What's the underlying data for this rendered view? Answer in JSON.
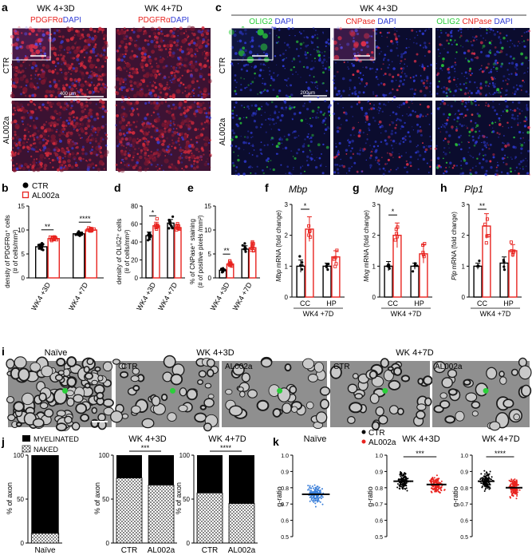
{
  "colors": {
    "ctr": "#000000",
    "al002a": "#e8231f",
    "naive": "#3b7fd9",
    "green": "#2bcf3a",
    "dapi": "#2f3bd6"
  },
  "panel_a": {
    "letter": "a",
    "col1_title": "WK 4+3D",
    "col2_title": "WK 4+7D",
    "stain_red": "PDGFRα",
    "stain_blue": "DAPI",
    "row1": "CTR",
    "row2": "AL002a",
    "scale": "400 μm"
  },
  "panel_c": {
    "letter": "c",
    "title": "WK 4+3D",
    "c1_green": "OLIG2",
    "c1_blue": "DAPI",
    "c2_red": "CNPase",
    "c2_blue": "DAPI",
    "c3_green": "OLIG2",
    "c3_red": "CNPase",
    "c3_blue": "DAPI",
    "row1": "CTR",
    "row2": "AL002a",
    "scale": "200μm"
  },
  "legend_b": {
    "ctr": "CTR",
    "al": "AL002a"
  },
  "panel_b": {
    "letter": "b",
    "ylabel1": "density of PDGFRα⁺ cells",
    "ylabel2": "(# of cells/mm²)",
    "ticks": [
      "0",
      "5",
      "10",
      "15"
    ],
    "groups": [
      "WK4 +3D",
      "WK4 +7D"
    ],
    "sig": [
      "**",
      "****"
    ]
  },
  "panel_d": {
    "letter": "d",
    "ylabel1": "density of OLIG2⁺ cells",
    "ylabel2": "(# of cells/mm²)",
    "ticks": [
      "0",
      "20",
      "40",
      "60",
      "80"
    ],
    "groups": [
      "WK4 +3D",
      "WK4 +7D"
    ],
    "sig": [
      "*"
    ]
  },
  "panel_e": {
    "letter": "e",
    "ylabel1": "% of CNPase⁺ staining",
    "ylabel2": "(# of positive pixels /mm²)",
    "ticks": [
      "0",
      "5",
      "10",
      "15"
    ],
    "groups": [
      "WK4 +3D",
      "WK4 +7D"
    ],
    "sig": [
      "**"
    ]
  },
  "panel_f": {
    "letter": "f",
    "gene": "Mbp",
    "ylabel_gene": "Mbp",
    "ylabel_rest": " mRNA (fold change)",
    "ticks": [
      "0",
      "1",
      "2",
      "3"
    ],
    "groups": [
      "CC",
      "HP"
    ],
    "bottom": "WK4 +7D",
    "sig": [
      "*"
    ]
  },
  "panel_g": {
    "letter": "g",
    "gene": "Mog",
    "ylabel_gene": "Mog",
    "ylabel_rest": " mRNA (fold change)",
    "ticks": [
      "0",
      "1",
      "2",
      "3"
    ],
    "groups": [
      "CC",
      "HP"
    ],
    "bottom": "WK4 +7D",
    "sig": [
      "*"
    ]
  },
  "panel_h": {
    "letter": "h",
    "gene": "Plp1",
    "ylabel_gene": "Plp",
    "ylabel_rest": " mRNA (fold change)",
    "ticks": [
      "0",
      "1",
      "2",
      "3"
    ],
    "groups": [
      "CC",
      "HP"
    ],
    "bottom": "WK4 +7D",
    "sig": [
      "**"
    ]
  },
  "panel_i": {
    "letter": "i",
    "naive": "Naïve",
    "g1": "WK 4+3D",
    "g2": "WK 4+7D",
    "ctr": "CTR",
    "al": "AL002a"
  },
  "panel_j": {
    "letter": "j",
    "legend_myelinated": "MYELINATED",
    "legend_naked": "NAKED",
    "ylabel": "% of axon",
    "ticks": [
      "0",
      "50",
      "100"
    ],
    "naive_label": "Naïve",
    "c2_title": "WK 4+3D",
    "c3_title": "WK 4+7D",
    "cats": [
      "CTR",
      "AL002a"
    ],
    "sig2": "***",
    "sig3": "****"
  },
  "panel_k": {
    "letter": "k",
    "legend_ctr": "CTR",
    "legend_al": "AL002a",
    "naive_title": "Naïve",
    "c2_title": "WK 4+3D",
    "c3_title": "WK 4+7D",
    "ylabel": "g-ratio",
    "ticks": [
      "0.5",
      "0.6",
      "0.7",
      "0.8",
      "0.9",
      "1.0"
    ],
    "sig2": "***",
    "sig3": "****"
  },
  "chart_data": [
    {
      "type": "bar",
      "panel": "b",
      "categories": [
        "WK4 +3D",
        "WK4 +7D"
      ],
      "series": [
        {
          "name": "CTR",
          "values": [
            6.5,
            9.2
          ],
          "sem": [
            0.5,
            0.3
          ]
        },
        {
          "name": "AL002a",
          "values": [
            8.2,
            10.0
          ],
          "sem": [
            0.5,
            0.3
          ]
        }
      ],
      "ylim": [
        0,
        15
      ]
    },
    {
      "type": "bar",
      "panel": "d",
      "categories": [
        "WK4 +3D",
        "WK4 +7D"
      ],
      "series": [
        {
          "name": "CTR",
          "values": [
            47,
            61
          ],
          "sem": [
            4,
            4
          ]
        },
        {
          "name": "AL002a",
          "values": [
            58,
            56
          ],
          "sem": [
            4,
            3
          ]
        }
      ],
      "ylim": [
        0,
        80
      ]
    },
    {
      "type": "bar",
      "panel": "e",
      "categories": [
        "WK4 +3D",
        "WK4 +7D"
      ],
      "series": [
        {
          "name": "CTR",
          "values": [
            1.6,
            6.0
          ],
          "sem": [
            0.3,
            0.7
          ]
        },
        {
          "name": "AL002a",
          "values": [
            2.9,
            6.3
          ],
          "sem": [
            0.4,
            1.0
          ]
        }
      ],
      "ylim": [
        0,
        15
      ]
    },
    {
      "type": "bar",
      "panel": "f",
      "categories": [
        "CC",
        "HP"
      ],
      "series": [
        {
          "name": "CTR",
          "values": [
            1.0,
            1.0
          ],
          "sem": [
            0.2,
            0.1
          ]
        },
        {
          "name": "AL002a",
          "values": [
            2.2,
            1.3
          ],
          "sem": [
            0.4,
            0.2
          ]
        }
      ],
      "ylim": [
        0,
        3
      ]
    },
    {
      "type": "bar",
      "panel": "g",
      "categories": [
        "CC",
        "HP"
      ],
      "series": [
        {
          "name": "CTR",
          "values": [
            1.0,
            1.0
          ],
          "sem": [
            0.15,
            0.1
          ]
        },
        {
          "name": "AL002a",
          "values": [
            2.0,
            1.4
          ],
          "sem": [
            0.4,
            0.3
          ]
        }
      ],
      "ylim": [
        0,
        3
      ]
    },
    {
      "type": "bar",
      "panel": "h",
      "categories": [
        "CC",
        "HP"
      ],
      "series": [
        {
          "name": "CTR",
          "values": [
            1.0,
            1.1
          ],
          "sem": [
            0.1,
            0.2
          ]
        },
        {
          "name": "AL002a",
          "values": [
            2.3,
            1.5
          ],
          "sem": [
            0.4,
            0.2
          ]
        }
      ],
      "ylim": [
        0,
        3
      ]
    },
    {
      "type": "bar",
      "panel": "j-naive",
      "categories": [
        "Naïve"
      ],
      "series": [
        {
          "name": "NAKED",
          "values": [
            11
          ]
        },
        {
          "name": "MYELINATED",
          "values": [
            89
          ]
        }
      ],
      "ylim": [
        0,
        100
      ]
    },
    {
      "type": "bar",
      "panel": "j-3d",
      "categories": [
        "CTR",
        "AL002a"
      ],
      "series": [
        {
          "name": "NAKED",
          "values": [
            74,
            66
          ]
        },
        {
          "name": "MYELINATED",
          "values": [
            26,
            34
          ]
        }
      ],
      "ylim": [
        0,
        100
      ]
    },
    {
      "type": "bar",
      "panel": "j-7d",
      "categories": [
        "CTR",
        "AL002a"
      ],
      "series": [
        {
          "name": "NAKED",
          "values": [
            57,
            45
          ]
        },
        {
          "name": "MYELINATED",
          "values": [
            43,
            55
          ]
        }
      ],
      "ylim": [
        0,
        100
      ]
    },
    {
      "type": "scatter",
      "panel": "k-naive",
      "categories": [
        "Naïve"
      ],
      "series": [
        {
          "values": [
            0.76
          ]
        }
      ],
      "ylim": [
        0.5,
        1.0
      ]
    },
    {
      "type": "scatter",
      "panel": "k-3d",
      "categories": [
        "CTR",
        "AL002a"
      ],
      "series": [
        {
          "name": "CTR",
          "values": [
            0.84
          ]
        },
        {
          "name": "AL002a",
          "values": [
            0.82
          ]
        }
      ],
      "ylim": [
        0.5,
        1.0
      ]
    },
    {
      "type": "scatter",
      "panel": "k-7d",
      "categories": [
        "CTR",
        "AL002a"
      ],
      "series": [
        {
          "name": "CTR",
          "values": [
            0.84
          ]
        },
        {
          "name": "AL002a",
          "values": [
            0.8
          ]
        }
      ],
      "ylim": [
        0.5,
        1.0
      ]
    }
  ]
}
